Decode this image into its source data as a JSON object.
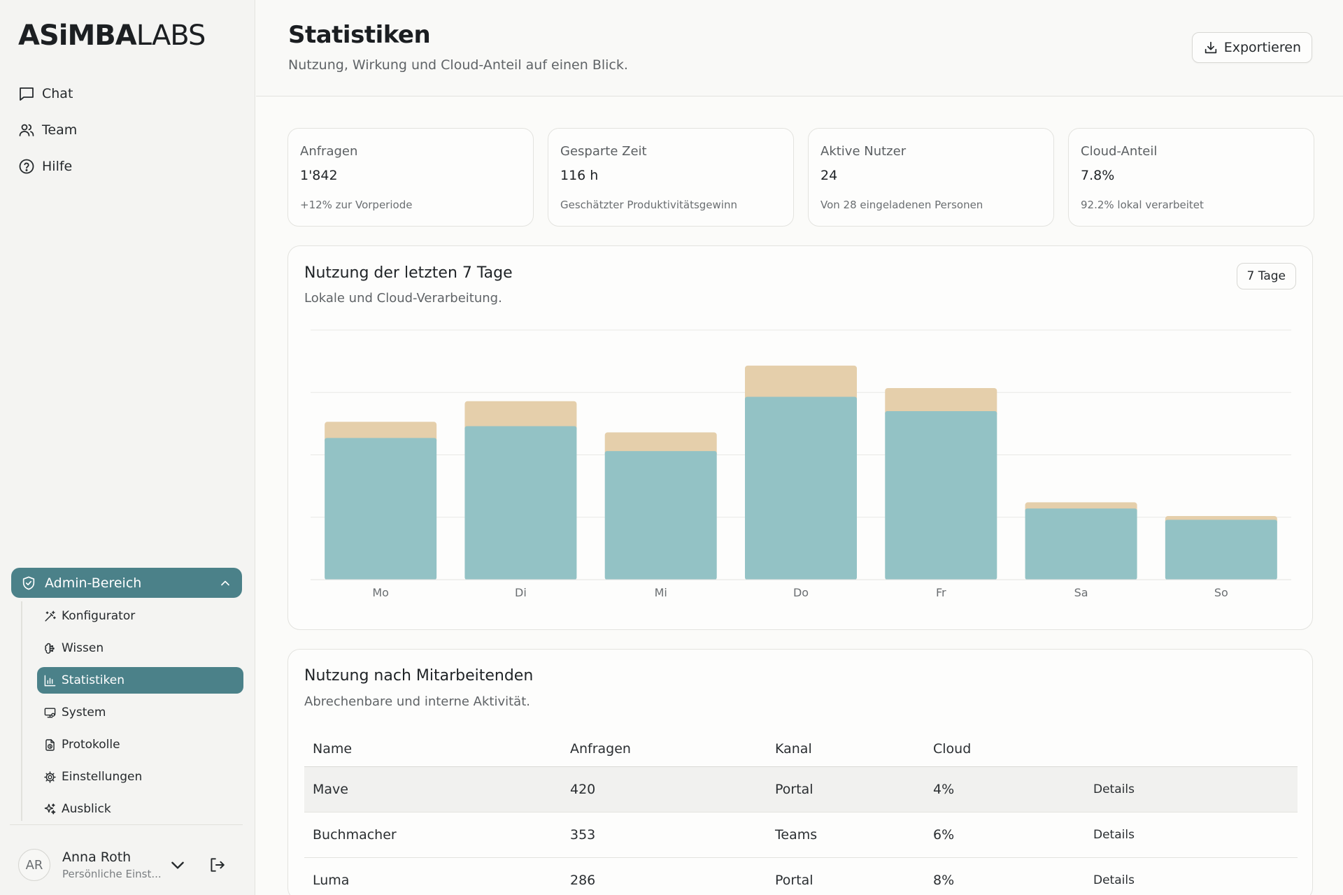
{
  "logo": {
    "bold": "ASiMBA",
    "light": "LABS"
  },
  "nav": [
    {
      "label": "Chat",
      "icon": "chat-icon"
    },
    {
      "label": "Team",
      "icon": "users-icon"
    },
    {
      "label": "Hilfe",
      "icon": "help-icon"
    }
  ],
  "admin": {
    "label": "Admin-Bereich",
    "items": [
      {
        "label": "Konfigurator",
        "icon": "wand-icon"
      },
      {
        "label": "Wissen",
        "icon": "brain-icon"
      },
      {
        "label": "Statistiken",
        "icon": "bar-chart-icon",
        "active": true
      },
      {
        "label": "System",
        "icon": "monitor-icon"
      },
      {
        "label": "Protokolle",
        "icon": "file-clock-icon"
      },
      {
        "label": "Einstellungen",
        "icon": "gear-icon"
      },
      {
        "label": "Ausblick",
        "icon": "sparkles-icon"
      }
    ]
  },
  "user": {
    "initials": "AR",
    "name": "Anna Roth",
    "subtitle": "Persönliche Einst..."
  },
  "header": {
    "title": "Statistiken",
    "subtitle": "Nutzung, Wirkung und Cloud-Anteil auf einen Blick.",
    "export_label": "Exportieren"
  },
  "kpis": [
    {
      "label": "Anfragen",
      "value": "1'842",
      "note": "+12% zur Vorperiode"
    },
    {
      "label": "Gesparte Zeit",
      "value": "116 h",
      "note": "Geschätzter Produktivitätsgewinn"
    },
    {
      "label": "Aktive Nutzer",
      "value": "24",
      "note": "Von 28 eingeladenen Personen"
    },
    {
      "label": "Cloud-Anteil",
      "value": "7.8%",
      "note": "92.2% lokal verarbeitet"
    }
  ],
  "usage_chart": {
    "title": "Nutzung der letzten 7 Tage",
    "subtitle": "Lokale und Cloud-Verarbeitung.",
    "range_label": "7 Tage"
  },
  "colors": {
    "accent": "#4b8189",
    "local": "#93c2c5",
    "cloud": "#e5cfab"
  },
  "chart_data": {
    "type": "bar",
    "stacked": true,
    "categories": [
      "Mo",
      "Di",
      "Mi",
      "Do",
      "Fr",
      "Sa",
      "So"
    ],
    "series": [
      {
        "values": [
          227,
          246,
          206,
          293,
          270,
          114,
          96
        ]
      },
      {
        "values": [
          26,
          40,
          30,
          50,
          37,
          10,
          6
        ]
      }
    ],
    "ylim": [
      0,
      400
    ],
    "grid": true,
    "legend": "none"
  },
  "team_table": {
    "title": "Nutzung nach Mitarbeitenden",
    "subtitle": "Abrechenbare und interne Aktivität.",
    "columns": [
      "Name",
      "Anfragen",
      "Kanal",
      "Cloud",
      ""
    ],
    "rows": [
      {
        "name": "Mave",
        "requests": "420",
        "channel": "Portal",
        "cloud": "4%",
        "action": "Details"
      },
      {
        "name": "Buchmacher",
        "requests": "353",
        "channel": "Teams",
        "cloud": "6%",
        "action": "Details"
      },
      {
        "name": "Luma",
        "requests": "286",
        "channel": "Portal",
        "cloud": "8%",
        "action": "Details"
      }
    ]
  }
}
